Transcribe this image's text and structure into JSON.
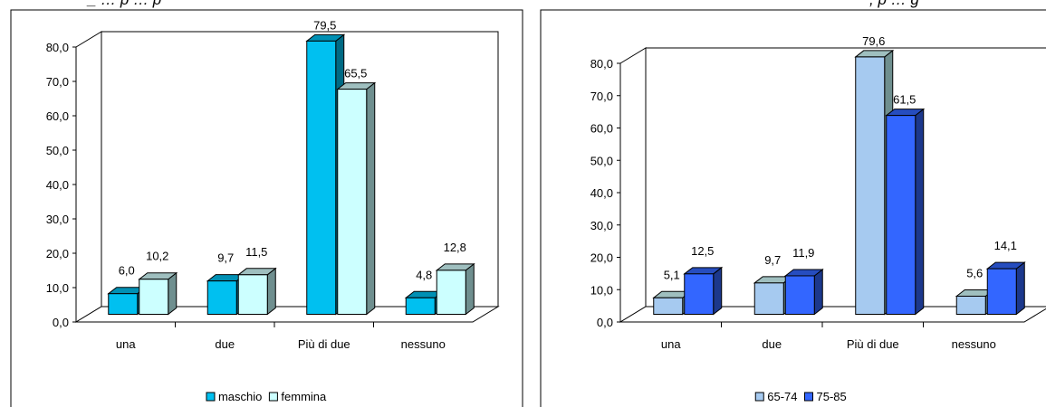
{
  "title_fragments": {
    "left": "_ … p … p",
    "right": ", p … g"
  },
  "chart_data": [
    {
      "type": "bar",
      "categories": [
        "una",
        "due",
        "Più di due",
        "nessuno"
      ],
      "series": [
        {
          "name": "maschio",
          "values": [
            6.0,
            9.7,
            79.5,
            4.8
          ],
          "color": "#00c0f0"
        },
        {
          "name": "femmina",
          "values": [
            10.2,
            11.5,
            65.5,
            12.8
          ],
          "color": "#ccffff"
        }
      ],
      "data_labels": [
        [
          "6,0",
          "9,7",
          "79,5",
          "4,8"
        ],
        [
          "10,2",
          "11,5",
          "65,5",
          "12,8"
        ]
      ],
      "y_ticks": [
        "0,0",
        "10,0",
        "20,0",
        "30,0",
        "40,0",
        "50,0",
        "60,0",
        "70,0",
        "80,0"
      ],
      "ylim": [
        0,
        80
      ],
      "legend_position": "bottom"
    },
    {
      "type": "bar",
      "categories": [
        "una",
        "due",
        "Più di due",
        "nessuno"
      ],
      "series": [
        {
          "name": "65-74",
          "values": [
            5.1,
            9.7,
            79.6,
            5.6
          ],
          "color": "#a6caf0"
        },
        {
          "name": "75-85",
          "values": [
            12.5,
            11.9,
            61.5,
            14.1
          ],
          "color": "#3366ff"
        }
      ],
      "data_labels": [
        [
          "5,1",
          "9,7",
          "79,6",
          "5,6"
        ],
        [
          "12,5",
          "11,9",
          "61,5",
          "14,1"
        ]
      ],
      "y_ticks": [
        "0,0",
        "10,0",
        "20,0",
        "30,0",
        "40,0",
        "50,0",
        "60,0",
        "70,0",
        "80,0"
      ],
      "ylim": [
        0,
        80
      ],
      "legend_position": "bottom"
    }
  ]
}
